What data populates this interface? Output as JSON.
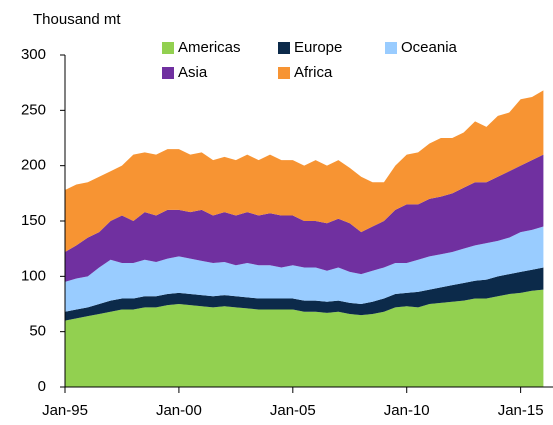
{
  "chart_data": {
    "type": "stacked_area",
    "y_axis_label": "Thousand mt",
    "x": [
      "1995-01",
      "1995-07",
      "1996-01",
      "1996-07",
      "1997-01",
      "1997-07",
      "1998-01",
      "1998-07",
      "1999-01",
      "1999-07",
      "2000-01",
      "2000-07",
      "2001-01",
      "2001-07",
      "2002-01",
      "2002-07",
      "2003-01",
      "2003-07",
      "2004-01",
      "2004-07",
      "2005-01",
      "2005-07",
      "2006-01",
      "2006-07",
      "2007-01",
      "2007-07",
      "2008-01",
      "2008-07",
      "2009-01",
      "2009-07",
      "2010-01",
      "2010-07",
      "2011-01",
      "2011-07",
      "2012-01",
      "2012-07",
      "2013-01",
      "2013-07",
      "2014-01",
      "2014-07",
      "2015-01",
      "2015-07",
      "2016-01"
    ],
    "series": [
      {
        "name": "Americas",
        "color": "#92d050",
        "values": [
          60,
          62,
          64,
          66,
          68,
          70,
          70,
          72,
          72,
          74,
          75,
          74,
          73,
          72,
          73,
          72,
          71,
          70,
          70,
          70,
          70,
          68,
          68,
          67,
          68,
          66,
          65,
          66,
          68,
          72,
          73,
          72,
          75,
          76,
          77,
          78,
          80,
          80,
          82,
          84,
          85,
          87,
          88
        ]
      },
      {
        "name": "Europe",
        "color": "#0c2a4a",
        "values": [
          8,
          8,
          8,
          9,
          10,
          10,
          10,
          10,
          10,
          10,
          10,
          10,
          10,
          10,
          10,
          10,
          10,
          10,
          10,
          10,
          10,
          10,
          10,
          10,
          10,
          10,
          10,
          11,
          12,
          12,
          12,
          14,
          13,
          14,
          15,
          16,
          16,
          17,
          18,
          18,
          19,
          19,
          20
        ]
      },
      {
        "name": "Oceania",
        "color": "#99ccff",
        "values": [
          27,
          28,
          28,
          33,
          37,
          32,
          32,
          33,
          31,
          32,
          33,
          32,
          31,
          30,
          30,
          28,
          31,
          30,
          30,
          28,
          30,
          30,
          30,
          28,
          30,
          28,
          27,
          28,
          28,
          28,
          27,
          29,
          30,
          30,
          30,
          31,
          32,
          33,
          32,
          33,
          36,
          36,
          37
        ]
      },
      {
        "name": "Asia",
        "color": "#7030a0",
        "values": [
          27,
          30,
          35,
          32,
          35,
          43,
          38,
          43,
          42,
          44,
          42,
          42,
          46,
          43,
          45,
          45,
          46,
          45,
          47,
          47,
          45,
          42,
          42,
          43,
          44,
          44,
          38,
          40,
          42,
          48,
          53,
          50,
          52,
          52,
          53,
          55,
          57,
          55,
          58,
          60,
          60,
          63,
          65
        ]
      },
      {
        "name": "Africa",
        "color": "#f79433",
        "values": [
          56,
          55,
          50,
          50,
          45,
          45,
          60,
          54,
          55,
          55,
          55,
          52,
          52,
          50,
          50,
          50,
          52,
          50,
          53,
          50,
          50,
          50,
          55,
          52,
          53,
          50,
          50,
          40,
          35,
          40,
          45,
          47,
          50,
          53,
          50,
          50,
          55,
          50,
          55,
          53,
          60,
          57,
          58
        ]
      }
    ],
    "xlim": [
      "1995-01",
      "2016-05"
    ],
    "xticks": [
      {
        "value": "1995-01",
        "label": "Jan-95"
      },
      {
        "value": "2000-01",
        "label": "Jan-00"
      },
      {
        "value": "2005-01",
        "label": "Jan-05"
      },
      {
        "value": "2010-01",
        "label": "Jan-10"
      },
      {
        "value": "2015-01",
        "label": "Jan-15"
      }
    ],
    "ylim": [
      0,
      300
    ],
    "yticks": [
      0,
      50,
      100,
      150,
      200,
      250,
      300
    ]
  }
}
